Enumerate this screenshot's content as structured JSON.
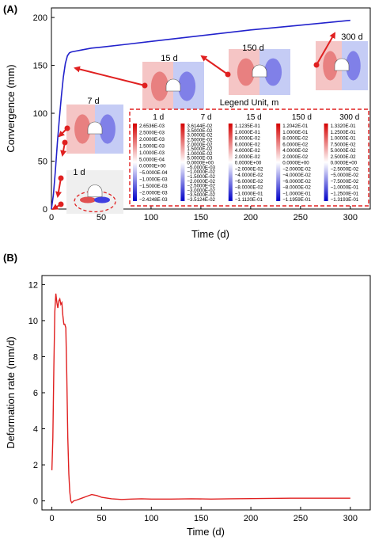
{
  "chart_data": [
    {
      "panel_label": "(A)",
      "type": "line",
      "xlabel": "Time (d)",
      "ylabel": "Convergence (mm)",
      "xlim": [
        0,
        320
      ],
      "ylim": [
        0,
        210
      ],
      "xticks": [
        "0",
        "50",
        "100",
        "150",
        "200",
        "250",
        "300"
      ],
      "yticks": [
        "0",
        "50",
        "100",
        "150",
        "200"
      ],
      "series": [
        {
          "color": "#2222cc",
          "x": [
            0,
            2,
            4,
            6,
            8,
            10,
            12,
            14,
            16,
            18,
            20,
            25,
            30,
            40,
            50,
            75,
            100,
            150,
            200,
            250,
            300
          ],
          "y": [
            0,
            15,
            40,
            70,
            95,
            118,
            138,
            152,
            160,
            163,
            164,
            165,
            166,
            168,
            169,
            172,
            175,
            181,
            187,
            192,
            197
          ]
        }
      ],
      "insets": [
        {
          "label": "1 d",
          "kind": "1d"
        },
        {
          "label": "7 d",
          "kind": "7d"
        },
        {
          "label": "15 d",
          "kind": "15d"
        },
        {
          "label": "150 d",
          "kind": "150d"
        },
        {
          "label": "300 d",
          "kind": "300d"
        }
      ],
      "legend": {
        "title": "Legend Unit, m",
        "columns": [
          {
            "header": "1 d",
            "values": [
              "2.6536E-03",
              "2.5000E-03",
              "2.0000E-03",
              "1.5000E-03",
              "1.0000E-03",
              "5.0000E-04",
              "0.0000E+00",
              "−5.0000E-04",
              "−1.0000E-03",
              "−1.5000E-03",
              "−2.0000E-03",
              "−2.4248E-03"
            ]
          },
          {
            "header": "7 d",
            "values": [
              "3.6144E-02",
              "3.5000E-02",
              "3.0000E-02",
              "2.5000E-02",
              "2.0000E-02",
              "1.5000E-02",
              "1.0000E-02",
              "5.0000E-03",
              "0.0000E+00",
              "−5.0000E-03",
              "−1.0000E-02",
              "−1.5000E-02",
              "−2.0000E-02",
              "−2.5000E-02",
              "−3.0000E-02",
              "−3.5000E-02",
              "−3.5124E-02"
            ]
          },
          {
            "header": "15 d",
            "values": [
              "1.1235E-01",
              "1.0000E-01",
              "8.0000E-02",
              "6.0000E-02",
              "4.0000E-02",
              "2.0000E-02",
              "0.0000E+00",
              "−2.0000E-02",
              "−4.0000E-02",
              "−6.0000E-02",
              "−8.0000E-02",
              "−1.0000E-01",
              "−1.1120E-01"
            ]
          },
          {
            "header": "150 d",
            "values": [
              "1.2042E-01",
              "1.0000E-01",
              "8.0000E-02",
              "6.0000E-02",
              "4.0000E-02",
              "2.0000E-02",
              "0.0000E+00",
              "−2.0000E-02",
              "−4.0000E-02",
              "−6.0000E-02",
              "−8.0000E-02",
              "−1.0000E-01",
              "−1.1959E-01"
            ]
          },
          {
            "header": "300 d",
            "values": [
              "1.3320E-01",
              "1.2500E-01",
              "1.0000E-01",
              "7.5000E-02",
              "5.0000E-02",
              "2.5000E-02",
              "0.0000E+00",
              "−2.5000E-02",
              "−5.0000E-02",
              "−7.5000E-02",
              "−1.0000E-01",
              "−1.2500E-01",
              "−1.3193E-01"
            ]
          }
        ]
      }
    },
    {
      "panel_label": "(B)",
      "type": "line",
      "xlabel": "Time (d)",
      "ylabel": "Deformation rate (mm/d)",
      "xlim": [
        -10,
        320
      ],
      "ylim": [
        -0.5,
        12.5
      ],
      "xticks": [
        "0",
        "50",
        "100",
        "150",
        "200",
        "250",
        "300"
      ],
      "yticks": [
        "0",
        "2",
        "4",
        "6",
        "8",
        "10",
        "12"
      ],
      "series": [
        {
          "color": "#e02020",
          "x": [
            0,
            1,
            2,
            3,
            4,
            5,
            6,
            7,
            8,
            9,
            10,
            11,
            12,
            13,
            14,
            15,
            16,
            17,
            18,
            19,
            20,
            21,
            22,
            25,
            30,
            35,
            40,
            45,
            50,
            60,
            70,
            80,
            90,
            100,
            120,
            140,
            160,
            180,
            200,
            220,
            240,
            260,
            280,
            300
          ],
          "y": [
            1.7,
            3.5,
            7.5,
            10.5,
            11.5,
            11.0,
            10.7,
            11.1,
            11.2,
            10.9,
            11.0,
            10.3,
            9.8,
            9.8,
            9.6,
            7.0,
            3.5,
            1.5,
            0.5,
            0.0,
            -0.1,
            -0.05,
            0.0,
            0.05,
            0.15,
            0.25,
            0.35,
            0.3,
            0.2,
            0.12,
            0.08,
            0.1,
            0.12,
            0.1,
            0.1,
            0.12,
            0.1,
            0.12,
            0.13,
            0.14,
            0.15,
            0.15,
            0.15,
            0.15
          ]
        }
      ]
    }
  ]
}
